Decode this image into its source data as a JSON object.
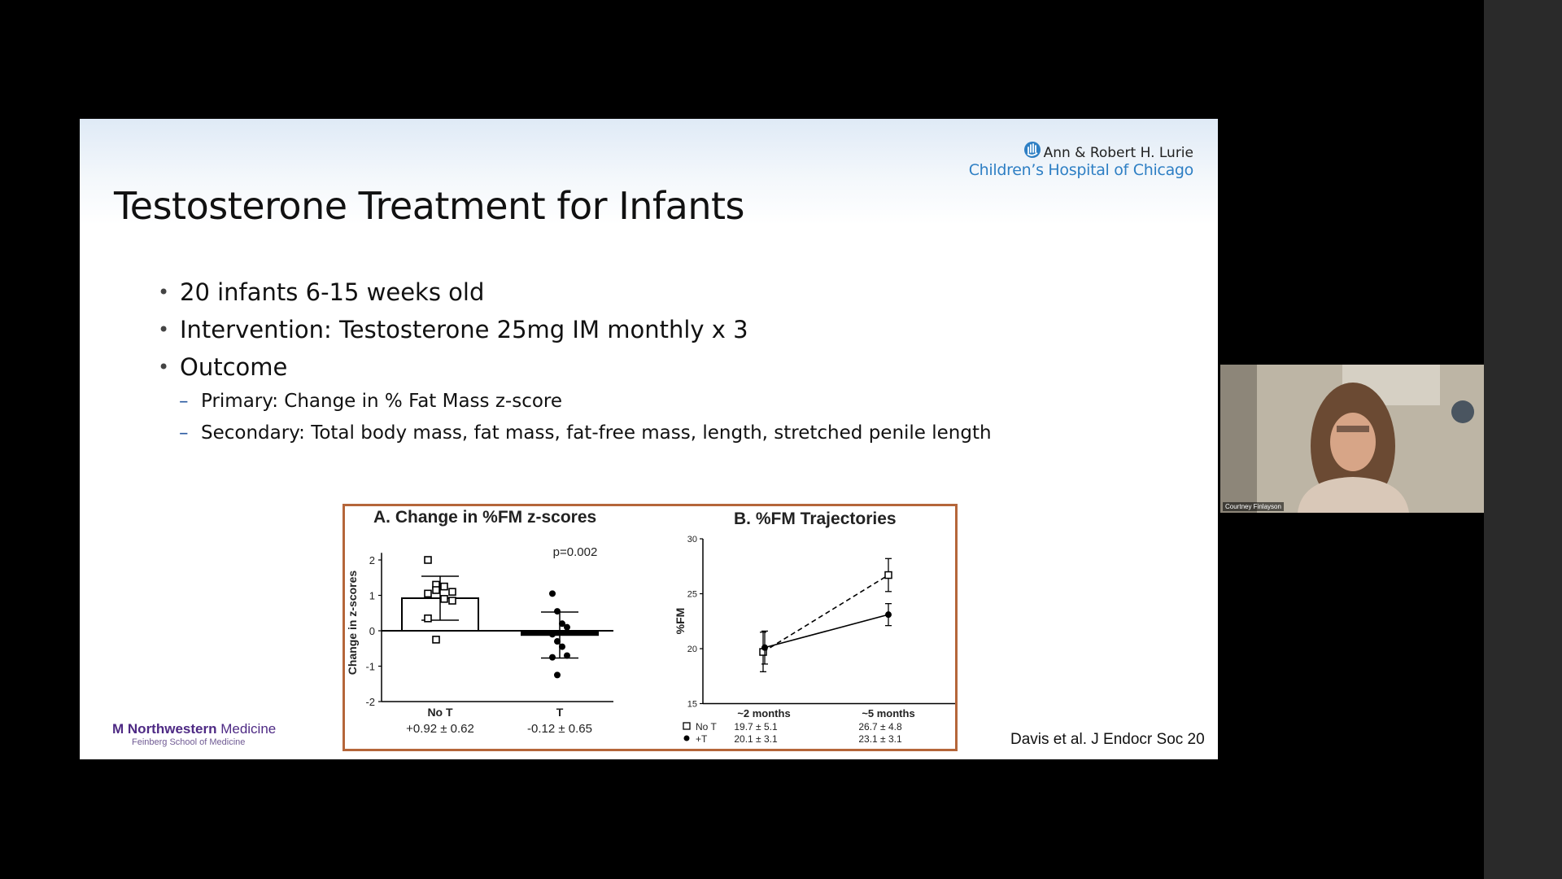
{
  "slide": {
    "title": "Testosterone Treatment for Infants",
    "bullets": [
      "20 infants 6-15 weeks old",
      "Intervention: Testosterone 25mg IM monthly x 3",
      "Outcome"
    ],
    "sub_bullets": [
      "Primary: Change in % Fat Mass z-score",
      "Secondary: Total body mass, fat mass, fat-free mass, length, stretched penile length"
    ],
    "hospital_logo": {
      "line1": "Ann & Robert H. Lurie",
      "line2": "Children’s Hospital of Chicago",
      "icon": "hand-icon"
    },
    "footer_logo": {
      "name_bold": "Northwestern",
      "name_light": " Medicine",
      "sub": "Feinberg School of Medicine"
    },
    "citation": "Davis et al. J Endocr Soc 20"
  },
  "video": {
    "participant_name": "Courtney Finlayson"
  },
  "colors": {
    "figure_border": "#b5663a",
    "hospital_blue": "#2e7fc4",
    "northwestern_purple": "#4e2a84"
  },
  "chart_data": [
    {
      "type": "bar",
      "title": "A.  Change in %FM z-scores",
      "ylabel": "Change in z-scores",
      "ylim": [
        -2,
        2
      ],
      "yticks": [
        "2",
        "1",
        "0",
        "-1",
        "-2"
      ],
      "categories": [
        "No T",
        "T"
      ],
      "values": [
        0.92,
        -0.12
      ],
      "sd": [
        0.62,
        0.65
      ],
      "category_stats": [
        "+0.92 ± 0.62",
        "-0.12 ± 0.65"
      ],
      "annotation": "p=0.002",
      "points": {
        "No T": [
          2.0,
          1.3,
          1.25,
          1.1,
          1.05,
          1.15,
          0.9,
          0.85,
          0.35,
          -0.25
        ],
        "T": [
          1.05,
          0.55,
          0.2,
          0.1,
          -0.1,
          -0.3,
          -0.45,
          -0.7,
          -0.75,
          -1.25
        ]
      },
      "legend": "none"
    },
    {
      "type": "line",
      "title": "B. %FM Trajectories",
      "ylabel": "%FM",
      "ylim": [
        15,
        30
      ],
      "yticks": [
        "30",
        "25",
        "20",
        "15"
      ],
      "x": [
        "~2 months",
        "~5 months"
      ],
      "series": [
        {
          "name": "No T",
          "values": [
            19.7,
            26.7
          ],
          "sd": [
            1.8,
            1.5
          ],
          "labels": [
            "19.7 ± 5.1",
            "26.7 ± 4.8"
          ],
          "style": "dashed",
          "marker": "open-square"
        },
        {
          "name": "+T",
          "values": [
            20.1,
            23.1
          ],
          "sd": [
            1.5,
            1.0
          ],
          "labels": [
            "20.1 ± 3.1",
            "23.1 ± 3.1"
          ],
          "style": "solid",
          "marker": "filled-circle"
        }
      ],
      "legend": "bottom-left"
    }
  ]
}
